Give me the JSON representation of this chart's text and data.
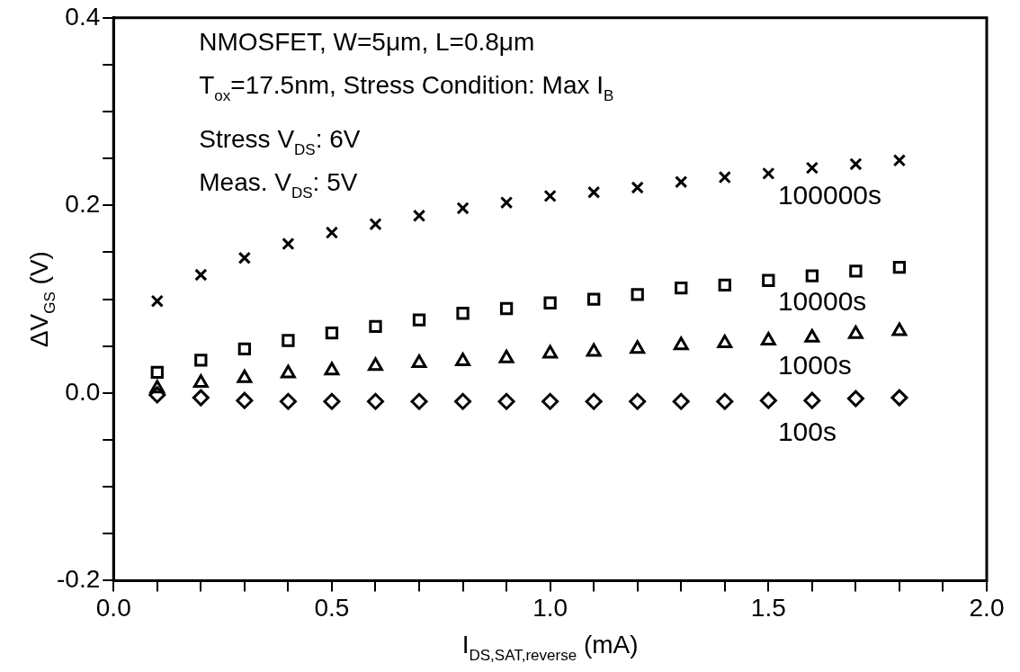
{
  "chart_data": {
    "type": "scatter",
    "xlabel": "I$_{DS,SAT,reverse}$ (mA)",
    "ylabel": "ΔV$_{GS}$ (V)",
    "x": [
      0.1,
      0.2,
      0.3,
      0.4,
      0.5,
      0.6,
      0.7,
      0.8,
      0.9,
      1.0,
      1.1,
      1.2,
      1.3,
      1.4,
      1.5,
      1.6,
      1.7,
      1.8
    ],
    "series": [
      {
        "name": "100000s",
        "color": "#000000",
        "marker": "cross",
        "values": [
          0.098,
          0.126,
          0.144,
          0.159,
          0.171,
          0.18,
          0.189,
          0.197,
          0.203,
          0.21,
          0.214,
          0.219,
          0.225,
          0.23,
          0.234,
          0.24,
          0.244,
          0.248
        ]
      },
      {
        "name": "10000s",
        "color": "#000000",
        "marker": "square",
        "values": [
          0.022,
          0.035,
          0.047,
          0.056,
          0.064,
          0.071,
          0.078,
          0.085,
          0.09,
          0.096,
          0.1,
          0.105,
          0.112,
          0.115,
          0.12,
          0.125,
          0.13,
          0.134
        ]
      },
      {
        "name": "1000s",
        "color": "#000000",
        "marker": "triangle",
        "values": [
          0.005,
          0.011,
          0.016,
          0.021,
          0.024,
          0.029,
          0.032,
          0.034,
          0.037,
          0.042,
          0.044,
          0.047,
          0.051,
          0.053,
          0.056,
          0.059,
          0.063,
          0.066
        ]
      },
      {
        "name": "100s",
        "color": "#000000",
        "marker": "diamond",
        "values": [
          -0.002,
          -0.005,
          -0.008,
          -0.009,
          -0.009,
          -0.009,
          -0.009,
          -0.009,
          -0.009,
          -0.009,
          -0.009,
          -0.009,
          -0.009,
          -0.009,
          -0.008,
          -0.008,
          -0.006,
          -0.005
        ]
      }
    ],
    "annotations": [
      "NMOSFET, W=5μm, L=0.8μm",
      "T$_{ox}$=17.5nm, Stress Condition: Max I$_{B}$",
      "Stress V$_{DS}$: 6V",
      "Meas. V$_{DS}$: 5V"
    ],
    "xlim": [
      0,
      2
    ],
    "ylim": [
      -0.2,
      0.4
    ],
    "xticks": [
      {
        "value": 0,
        "label": "0.0"
      },
      {
        "value": 0.1,
        "label": null
      },
      {
        "value": 0.2,
        "label": null
      },
      {
        "value": 0.3,
        "label": null
      },
      {
        "value": 0.4,
        "label": null
      },
      {
        "value": 0.5,
        "label": "0.5"
      },
      {
        "value": 0.6,
        "label": null
      },
      {
        "value": 0.7,
        "label": null
      },
      {
        "value": 0.8,
        "label": null
      },
      {
        "value": 0.9,
        "label": null
      },
      {
        "value": 1,
        "label": "1.0"
      },
      {
        "value": 1.1,
        "label": null
      },
      {
        "value": 1.2,
        "label": null
      },
      {
        "value": 1.3,
        "label": null
      },
      {
        "value": 1.4,
        "label": null
      },
      {
        "value": 1.5,
        "label": "1.5"
      },
      {
        "value": 1.6,
        "label": null
      },
      {
        "value": 1.7,
        "label": null
      },
      {
        "value": 1.8,
        "label": null
      },
      {
        "value": 1.9,
        "label": null
      },
      {
        "value": 2,
        "label": "2.0"
      }
    ],
    "yticks": [
      {
        "value": -0.2,
        "label": "-0.2"
      },
      {
        "value": -0.15,
        "label": null
      },
      {
        "value": -0.1,
        "label": null
      },
      {
        "value": -0.05,
        "label": null
      },
      {
        "value": 0,
        "label": "0.0"
      },
      {
        "value": 0.05,
        "label": null
      },
      {
        "value": 0.1,
        "label": null
      },
      {
        "value": 0.15,
        "label": null
      },
      {
        "value": 0.2,
        "label": "0.2"
      },
      {
        "value": 0.25,
        "label": null
      },
      {
        "value": 0.3,
        "label": null
      },
      {
        "value": 0.35,
        "label": null
      },
      {
        "value": 0.4,
        "label": "0.4"
      }
    ],
    "grid": false,
    "legend": false
  }
}
